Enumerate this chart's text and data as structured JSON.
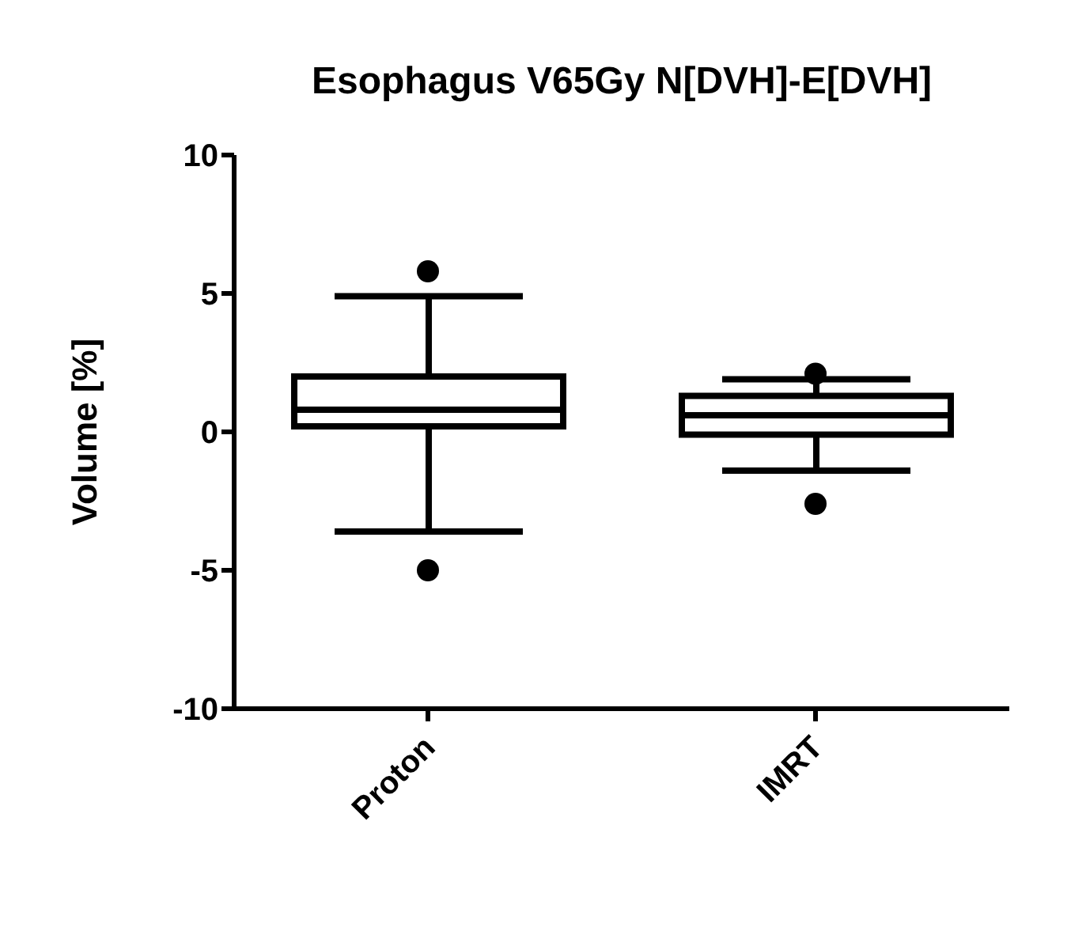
{
  "chart_data": {
    "type": "box",
    "title": "Esophagus V65Gy N[DVH]-E[DVH]",
    "ylabel": "Volume [%]",
    "categories": [
      "Proton",
      "IMRT"
    ],
    "color": "#000000",
    "boxes": [
      {
        "low": -3.6,
        "q1": 0.2,
        "median": 0.8,
        "q3": 2.0,
        "high": 4.9,
        "outliers": [
          5.8,
          -5.0
        ]
      },
      {
        "low": -1.4,
        "q1": -0.1,
        "median": 0.6,
        "q3": 1.3,
        "high": 1.9,
        "outliers": [
          2.1,
          -2.6
        ]
      }
    ],
    "ylim": [
      -10,
      10
    ],
    "yticks": [
      -10,
      -5,
      0,
      5,
      10
    ],
    "grid": false
  }
}
